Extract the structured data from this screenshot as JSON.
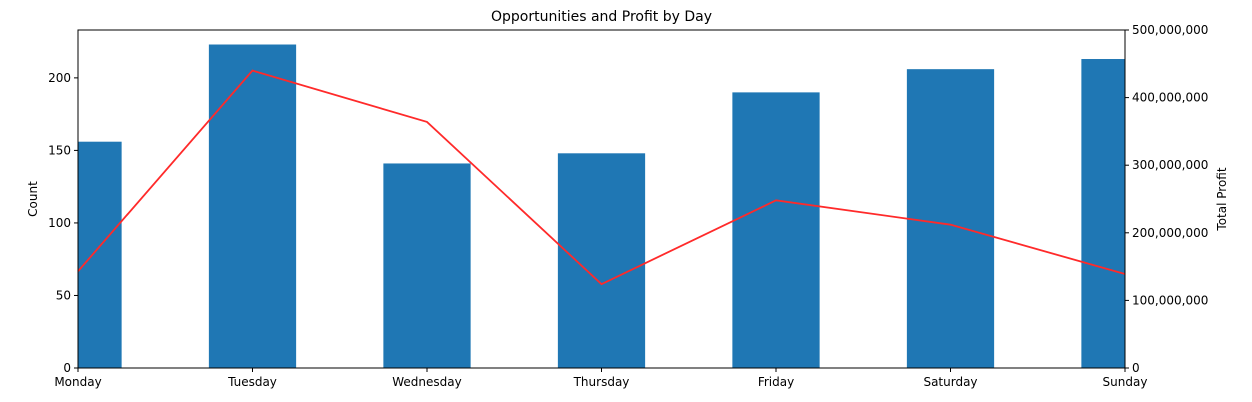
{
  "chart_data": {
    "type": "bar",
    "title": "Opportunities and Profit by Day",
    "xlabel": "",
    "categories": [
      "Monday",
      "Tuesday",
      "Wednesday",
      "Thursday",
      "Friday",
      "Saturday",
      "Sunday"
    ],
    "series": [
      {
        "type": "bar",
        "axis": "left",
        "color": "#1f77b4",
        "values": [
          156,
          223,
          141,
          148,
          190,
          206,
          213
        ]
      },
      {
        "type": "line",
        "axis": "right",
        "color": "#ff2a2a",
        "values": [
          143000000,
          440000000,
          364000000,
          124000000,
          248000000,
          212000000,
          139000000
        ]
      }
    ],
    "ylabel": "Count",
    "ylim": [
      0,
      233
    ],
    "yticks": [
      0,
      50,
      100,
      150,
      200
    ],
    "ylabel_right": "Total Profit",
    "ylim_right": [
      0,
      500000000
    ],
    "yticks_right": [
      0,
      100000000,
      200000000,
      300000000,
      400000000,
      500000000
    ],
    "ytick_labels_right": [
      "0",
      "100,000,000",
      "200,000,000",
      "300,000,000",
      "400,000,000",
      "500,000,000"
    ]
  }
}
